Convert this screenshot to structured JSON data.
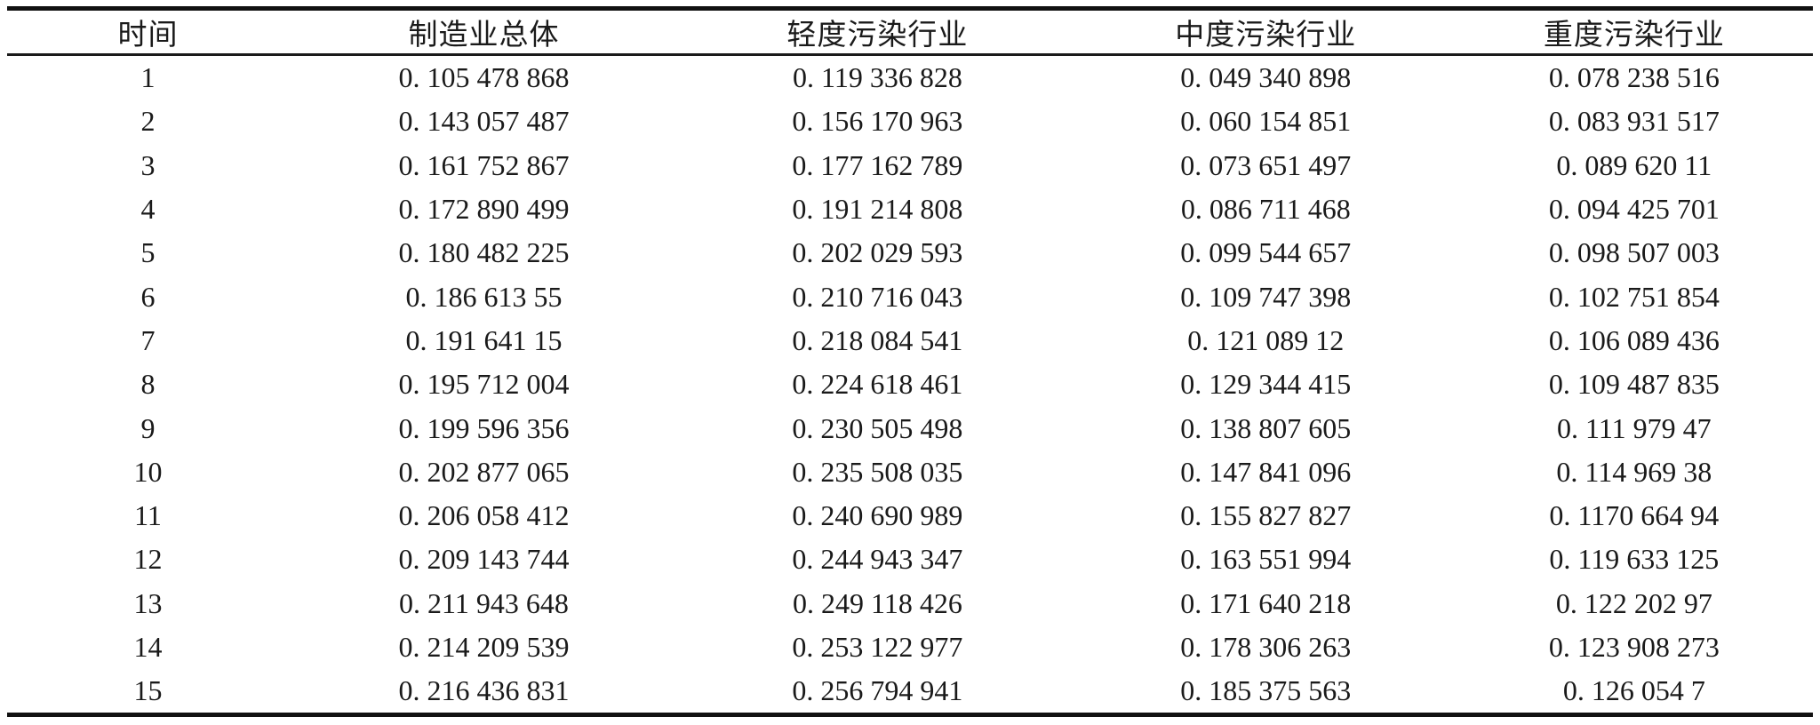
{
  "chart_data": {
    "type": "table",
    "columns": [
      "时间",
      "制造业总体",
      "轻度污染行业",
      "中度污染行业",
      "重度污染行业"
    ],
    "rows": [
      [
        "1",
        "0. 105 478 868",
        "0. 119 336 828",
        "0. 049 340 898",
        "0. 078 238 516"
      ],
      [
        "2",
        "0. 143 057 487",
        "0. 156 170 963",
        "0. 060 154 851",
        "0. 083 931 517"
      ],
      [
        "3",
        "0. 161 752 867",
        "0. 177 162 789",
        "0. 073 651 497",
        "0. 089 620 11"
      ],
      [
        "4",
        "0. 172 890 499",
        "0. 191 214 808",
        "0. 086 711 468",
        "0. 094 425 701"
      ],
      [
        "5",
        "0. 180 482 225",
        "0. 202 029 593",
        "0. 099 544 657",
        "0. 098 507 003"
      ],
      [
        "6",
        "0. 186 613 55",
        "0. 210 716 043",
        "0. 109 747 398",
        "0. 102 751 854"
      ],
      [
        "7",
        "0. 191 641 15",
        "0. 218 084 541",
        "0. 121 089 12",
        "0. 106 089 436"
      ],
      [
        "8",
        "0. 195 712 004",
        "0. 224 618 461",
        "0. 129 344 415",
        "0. 109 487 835"
      ],
      [
        "9",
        "0. 199 596 356",
        "0. 230 505 498",
        "0. 138 807 605",
        "0. 111 979 47"
      ],
      [
        "10",
        "0. 202 877 065",
        "0. 235 508 035",
        "0. 147 841 096",
        "0. 114 969 38"
      ],
      [
        "11",
        "0. 206 058 412",
        "0. 240 690 989",
        "0. 155 827 827",
        "0. 1170 664 94"
      ],
      [
        "12",
        "0. 209 143 744",
        "0. 244 943 347",
        "0. 163 551 994",
        "0. 119 633 125"
      ],
      [
        "13",
        "0. 211 943 648",
        "0. 249 118 426",
        "0. 171 640 218",
        "0. 122 202 97"
      ],
      [
        "14",
        "0. 214 209 539",
        "0. 253 122 977",
        "0. 178 306 263",
        "0. 123 908 273"
      ],
      [
        "15",
        "0. 216 436 831",
        "0. 256 794 941",
        "0. 185 375 563",
        "0. 126 054 7"
      ]
    ]
  },
  "colors": {
    "text": "#1a1a1a",
    "rule": "#111111",
    "background": "#ffffff"
  }
}
